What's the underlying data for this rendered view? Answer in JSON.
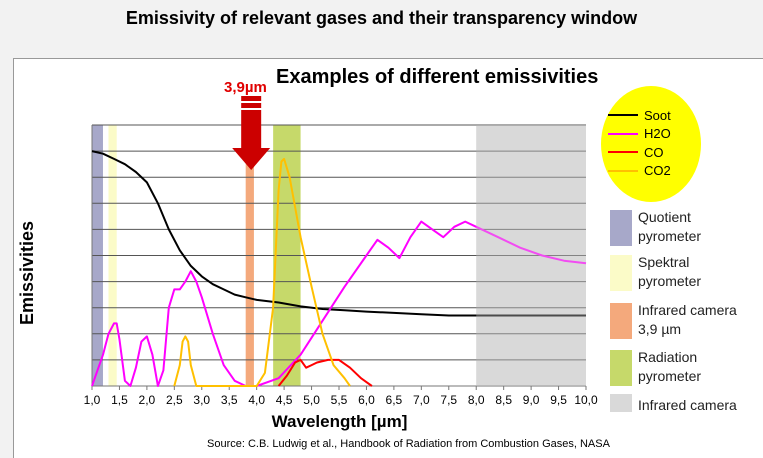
{
  "page": {
    "title": "Emissivity of relevant gases and their transparency window",
    "source": "Source: C.B. Ludwig et al., Handbook of Radiation from Combustion Gases, NASA"
  },
  "chart_data": {
    "type": "line",
    "title": "Examples of different emissivities",
    "xlabel": "Wavelength [µm]",
    "ylabel": "Emissivities",
    "xlim": [
      1.0,
      10.0
    ],
    "ylim": [
      0,
      1
    ],
    "x_ticks": [
      "1,0",
      "1,5",
      "2,0",
      "2,5",
      "3,0",
      "3,5",
      "4,0",
      "4,5",
      "5,0",
      "5,5",
      "6,0",
      "6,5",
      "7,0",
      "7,5",
      "8,0",
      "8,5",
      "9,0",
      "9,5",
      "10,0"
    ],
    "grid": true,
    "legend_position": "top-right",
    "annotation": {
      "label": "3,9µm",
      "x": 3.9,
      "color": "#e00000"
    },
    "series": [
      {
        "name": "Soot",
        "color": "#000000",
        "points": [
          [
            1.0,
            0.9
          ],
          [
            1.2,
            0.89
          ],
          [
            1.4,
            0.87
          ],
          [
            1.6,
            0.85
          ],
          [
            1.8,
            0.82
          ],
          [
            2.0,
            0.78
          ],
          [
            2.2,
            0.7
          ],
          [
            2.4,
            0.6
          ],
          [
            2.6,
            0.52
          ],
          [
            2.8,
            0.46
          ],
          [
            3.0,
            0.42
          ],
          [
            3.2,
            0.39
          ],
          [
            3.4,
            0.37
          ],
          [
            3.6,
            0.35
          ],
          [
            3.8,
            0.34
          ],
          [
            4.0,
            0.33
          ],
          [
            4.4,
            0.32
          ],
          [
            4.8,
            0.305
          ],
          [
            5.2,
            0.295
          ],
          [
            5.6,
            0.29
          ],
          [
            6.0,
            0.285
          ],
          [
            6.5,
            0.28
          ],
          [
            7.0,
            0.275
          ],
          [
            7.5,
            0.27
          ],
          [
            8.0,
            0.27
          ],
          [
            9.0,
            0.27
          ],
          [
            10.0,
            0.27
          ]
        ]
      },
      {
        "name": "H2O",
        "color": "#ff00ff",
        "points": [
          [
            1.0,
            0.0
          ],
          [
            1.1,
            0.06
          ],
          [
            1.2,
            0.12
          ],
          [
            1.3,
            0.2
          ],
          [
            1.4,
            0.24
          ],
          [
            1.45,
            0.24
          ],
          [
            1.5,
            0.18
          ],
          [
            1.6,
            0.02
          ],
          [
            1.7,
            0.0
          ],
          [
            1.8,
            0.07
          ],
          [
            1.9,
            0.17
          ],
          [
            2.0,
            0.19
          ],
          [
            2.1,
            0.12
          ],
          [
            2.2,
            0.0
          ],
          [
            2.3,
            0.06
          ],
          [
            2.4,
            0.3
          ],
          [
            2.5,
            0.37
          ],
          [
            2.55,
            0.37
          ],
          [
            2.6,
            0.37
          ],
          [
            2.7,
            0.4
          ],
          [
            2.8,
            0.44
          ],
          [
            2.9,
            0.4
          ],
          [
            3.0,
            0.34
          ],
          [
            3.2,
            0.2
          ],
          [
            3.4,
            0.08
          ],
          [
            3.6,
            0.02
          ],
          [
            3.8,
            0.0
          ],
          [
            4.0,
            0.0
          ],
          [
            4.4,
            0.03
          ],
          [
            4.8,
            0.12
          ],
          [
            5.2,
            0.25
          ],
          [
            5.6,
            0.38
          ],
          [
            6.0,
            0.5
          ],
          [
            6.2,
            0.56
          ],
          [
            6.4,
            0.53
          ],
          [
            6.6,
            0.49
          ],
          [
            6.8,
            0.57
          ],
          [
            7.0,
            0.63
          ],
          [
            7.2,
            0.6
          ],
          [
            7.4,
            0.57
          ],
          [
            7.6,
            0.61
          ],
          [
            7.8,
            0.63
          ],
          [
            8.0,
            0.61
          ],
          [
            8.4,
            0.57
          ],
          [
            8.8,
            0.53
          ],
          [
            9.2,
            0.5
          ],
          [
            9.6,
            0.48
          ],
          [
            10.0,
            0.47
          ]
        ]
      },
      {
        "name": "CO",
        "color": "#ff0000",
        "points": [
          [
            4.4,
            0.0
          ],
          [
            4.55,
            0.04
          ],
          [
            4.7,
            0.09
          ],
          [
            4.8,
            0.1
          ],
          [
            4.9,
            0.07
          ],
          [
            5.0,
            0.08
          ],
          [
            5.1,
            0.09
          ],
          [
            5.3,
            0.1
          ],
          [
            5.5,
            0.1
          ],
          [
            5.7,
            0.07
          ],
          [
            5.9,
            0.03
          ],
          [
            6.1,
            0.0
          ]
        ]
      },
      {
        "name": "CO2",
        "color": "#ffc000",
        "points": [
          [
            2.5,
            0.0
          ],
          [
            2.6,
            0.08
          ],
          [
            2.65,
            0.17
          ],
          [
            2.7,
            0.19
          ],
          [
            2.75,
            0.17
          ],
          [
            2.8,
            0.08
          ],
          [
            2.9,
            0.0
          ],
          [
            3.0,
            0.0
          ],
          [
            4.0,
            0.0
          ],
          [
            4.15,
            0.05
          ],
          [
            4.3,
            0.3
          ],
          [
            4.4,
            0.75
          ],
          [
            4.45,
            0.86
          ],
          [
            4.5,
            0.87
          ],
          [
            4.6,
            0.8
          ],
          [
            4.8,
            0.57
          ],
          [
            5.0,
            0.38
          ],
          [
            5.2,
            0.2
          ],
          [
            5.4,
            0.08
          ],
          [
            5.6,
            0.03
          ],
          [
            5.7,
            0.0
          ]
        ]
      }
    ],
    "bands": [
      {
        "label": "Quotient pyrometer",
        "x": [
          1.0,
          1.2
        ],
        "color": "#a7a8c9"
      },
      {
        "label": "Spektral pyrometer",
        "x": [
          1.3,
          1.45
        ],
        "color": "#fbfbc8"
      },
      {
        "label": "Infrared camera 3,9 µm",
        "x": [
          3.8,
          3.95
        ],
        "color": "#f4a97c"
      },
      {
        "label": "Radiation pyrometer",
        "x": [
          4.3,
          4.8
        ],
        "color": "#c6d96a"
      },
      {
        "label": "Infrared camera",
        "x": [
          8.0,
          10.0
        ],
        "color": "#d9d9d9"
      }
    ]
  },
  "colors": {
    "highlight": "#ffff00",
    "arrow": "#cc0000"
  }
}
